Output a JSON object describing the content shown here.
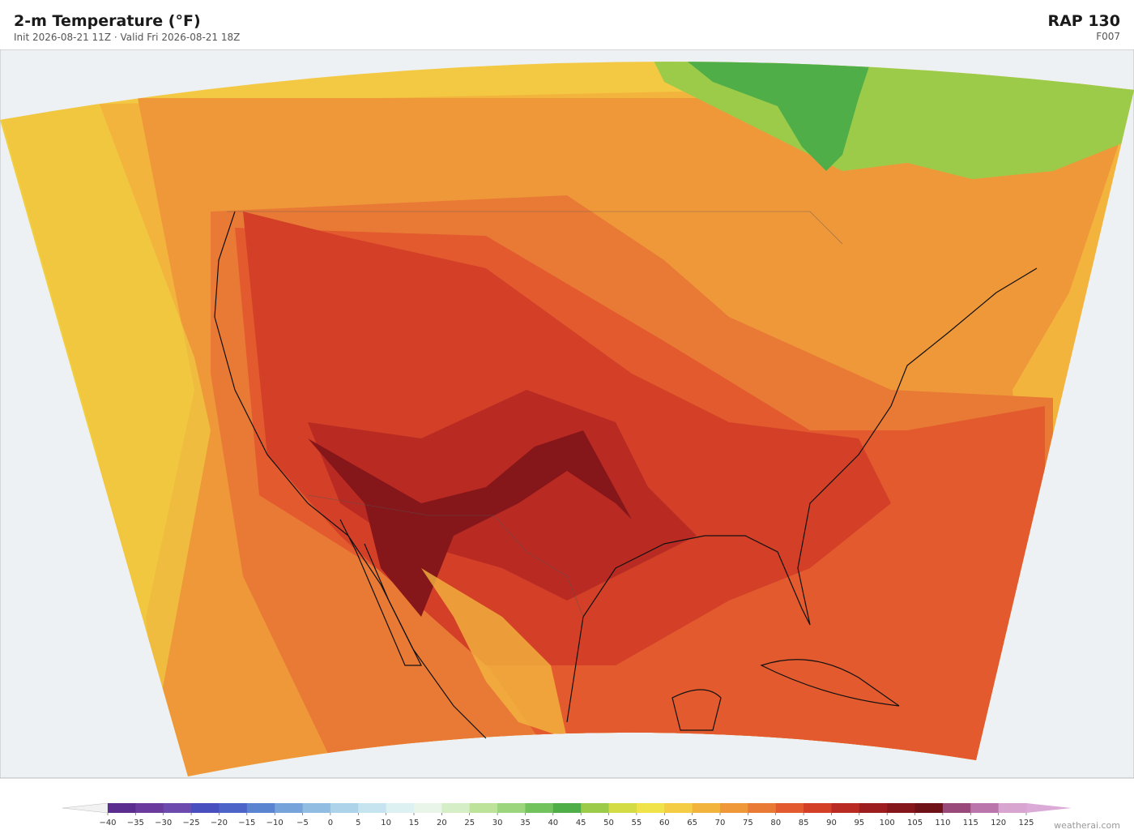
{
  "header": {
    "title": "2-m Temperature  (°F)",
    "subtitle": "Init 2026-08-21 11Z  ·  Valid Fri 2026-08-21 18Z",
    "model": "RAP  130",
    "forecast_hour": "F007"
  },
  "colorbar": {
    "ticks": [
      {
        "value": -40,
        "label": "−40"
      },
      {
        "value": -35,
        "label": "−35"
      },
      {
        "value": -30,
        "label": "−30"
      },
      {
        "value": -25,
        "label": "−25"
      },
      {
        "value": -20,
        "label": "−20"
      },
      {
        "value": -15,
        "label": "−15"
      },
      {
        "value": -10,
        "label": "−10"
      },
      {
        "value": -5,
        "label": "−5"
      },
      0,
      5,
      10,
      15,
      20,
      25,
      30,
      35,
      40,
      45,
      50,
      55,
      60,
      65,
      70,
      75,
      80,
      85,
      90,
      95,
      100,
      105,
      110,
      115,
      120,
      125
    ],
    "colors": [
      "#5b2d8e",
      "#6a3a9c",
      "#6d4aae",
      "#4a4fc0",
      "#4c63c8",
      "#5b84d0",
      "#76a3d9",
      "#92bde3",
      "#acd3ea",
      "#c6e4f0",
      "#ddf0f2",
      "#e8f5e8",
      "#d6eec6",
      "#bde39b",
      "#9bd57d",
      "#72c35e",
      "#4fae48",
      "#9ccb4a",
      "#d3dc45",
      "#efe349",
      "#f5cd45",
      "#f3b43e",
      "#ef983a",
      "#e97a36",
      "#e35a2e",
      "#d43f28",
      "#b92a22",
      "#9d1c1d",
      "#851619",
      "#6f1217",
      "#9a4a7a",
      "#ba75aa",
      "#d7a5cf"
    ],
    "extend_colors": [
      "#f2f2f2",
      "#dcaad6"
    ]
  },
  "credit": "weatherai.com"
}
